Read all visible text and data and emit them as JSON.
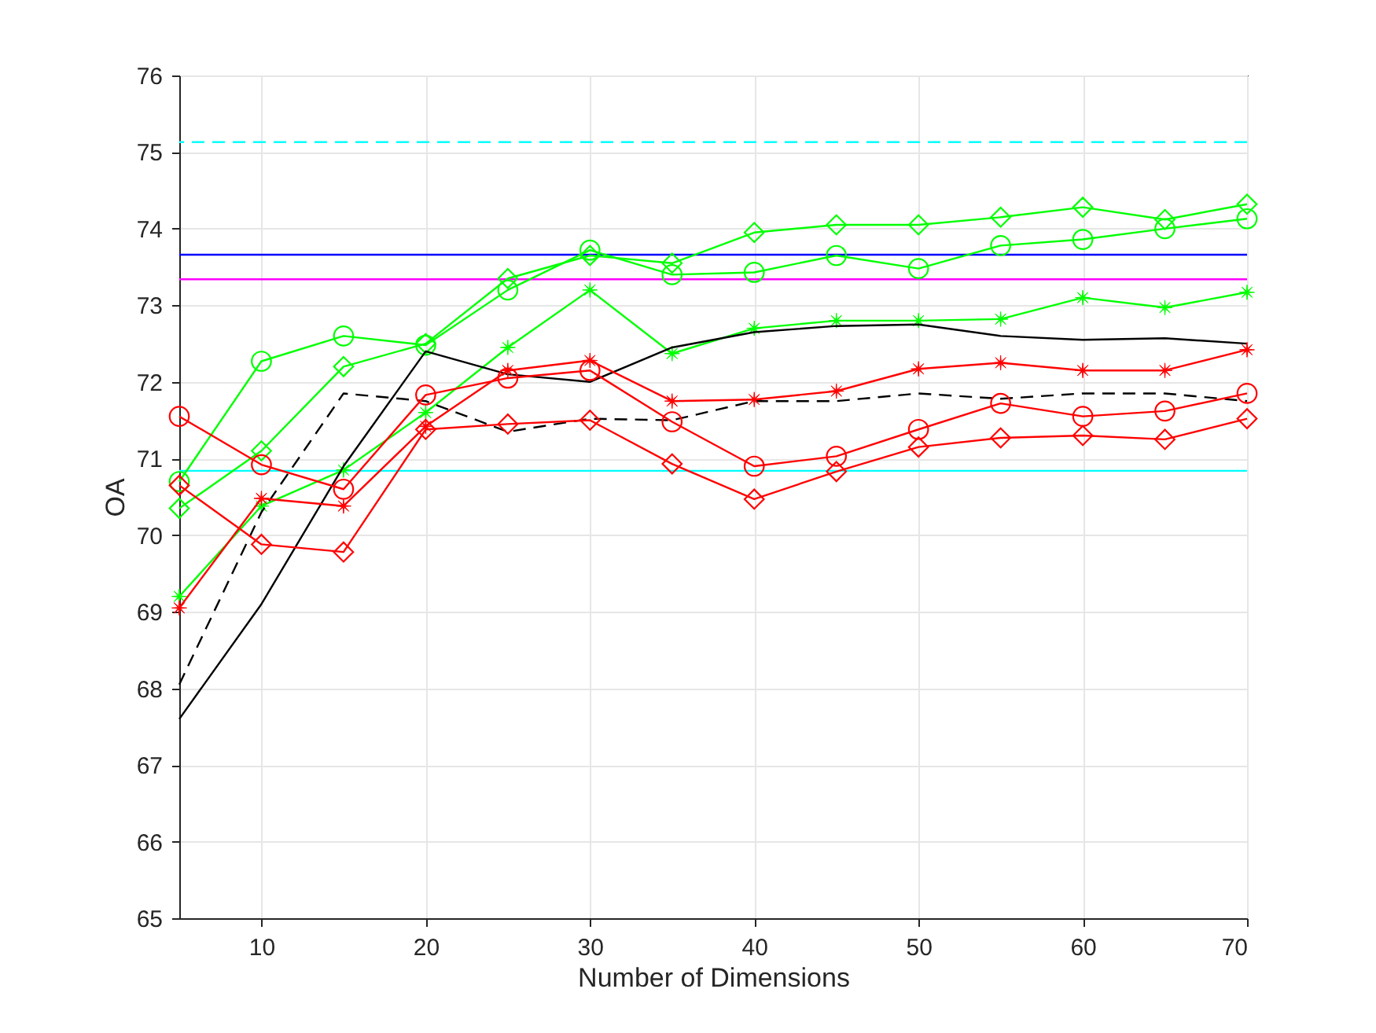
{
  "chart_data": {
    "type": "line",
    "xlabel": "Number of Dimensions",
    "ylabel": "OA",
    "x": [
      5,
      10,
      15,
      20,
      25,
      30,
      35,
      40,
      45,
      50,
      55,
      60,
      65,
      70
    ],
    "series": [
      {
        "color": "#00ff00",
        "marker": "diamond",
        "values": [
          70.35,
          71.1,
          72.2,
          72.5,
          73.35,
          73.65,
          73.55,
          73.95,
          74.05,
          74.05,
          74.15,
          74.28,
          74.12,
          74.32
        ]
      },
      {
        "color": "#00ff00",
        "marker": "circle",
        "values": [
          70.7,
          72.27,
          72.6,
          72.48,
          73.2,
          73.72,
          73.4,
          73.43,
          73.65,
          73.48,
          73.78,
          73.86,
          74.0,
          74.13
        ]
      },
      {
        "color": "#00ff00",
        "marker": "star",
        "values": [
          69.2,
          70.38,
          70.85,
          71.6,
          72.45,
          73.2,
          72.37,
          72.7,
          72.8,
          72.8,
          72.82,
          73.1,
          72.97,
          73.17
        ]
      },
      {
        "color": "#000000",
        "marker": "none",
        "values": [
          67.6,
          69.1,
          70.9,
          72.4,
          72.1,
          72.0,
          72.45,
          72.65,
          72.73,
          72.75,
          72.6,
          72.55,
          72.57,
          72.5
        ]
      },
      {
        "color": "#000000",
        "marker": "none",
        "line_style": "dashed",
        "values": [
          68.05,
          70.3,
          71.85,
          71.75,
          71.35,
          71.52,
          71.5,
          71.75,
          71.75,
          71.85,
          71.78,
          71.85,
          71.85,
          71.75
        ]
      },
      {
        "color": "#ff0000",
        "marker": "star",
        "values": [
          69.05,
          70.48,
          70.38,
          71.42,
          72.15,
          72.28,
          71.75,
          71.77,
          71.88,
          72.17,
          72.25,
          72.15,
          72.15,
          72.42
        ]
      },
      {
        "color": "#ff0000",
        "marker": "circle",
        "values": [
          71.55,
          70.92,
          70.6,
          71.83,
          72.05,
          72.15,
          71.48,
          70.9,
          71.03,
          71.38,
          71.72,
          71.55,
          71.62,
          71.85
        ]
      },
      {
        "color": "#ff0000",
        "marker": "diamond",
        "values": [
          70.65,
          69.88,
          69.78,
          71.38,
          71.45,
          71.5,
          70.93,
          70.47,
          70.83,
          71.15,
          71.27,
          71.3,
          71.25,
          71.52
        ]
      }
    ],
    "ref_lines": [
      {
        "axis": "y",
        "value": 75.13,
        "color": "#00ffff",
        "line_style": "dashed"
      },
      {
        "axis": "y",
        "value": 73.66,
        "color": "#0000ff"
      },
      {
        "axis": "y",
        "value": 73.34,
        "color": "#ff00ff"
      },
      {
        "axis": "y",
        "value": 70.84,
        "color": "#00ffff"
      }
    ],
    "xlim": [
      5,
      70
    ],
    "xticks": [
      10,
      20,
      30,
      40,
      50,
      60,
      70
    ],
    "ylim": [
      65,
      76
    ],
    "yticks": [
      65,
      66,
      67,
      68,
      69,
      70,
      71,
      72,
      73,
      74,
      75,
      76
    ],
    "grid": true
  }
}
